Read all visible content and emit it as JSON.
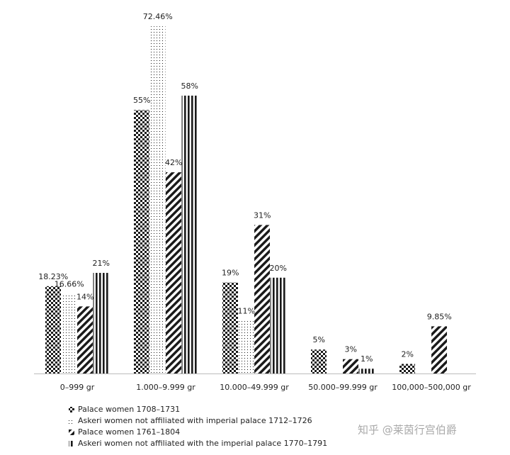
{
  "chart_data": {
    "type": "bar",
    "categories": [
      "0–999 gr",
      "1.000–9.999 gr",
      "10.000–49.999 gr",
      "50.000–99.999 gr",
      "100,000–500,000 gr"
    ],
    "series": [
      {
        "name": "Palace women  1708–1731",
        "color": "#1a1a1a",
        "pattern": "checker",
        "values": [
          18.23,
          55,
          19,
          5,
          2
        ],
        "value_labels": [
          "18.23%",
          "55%",
          "19%",
          "5%",
          "2%"
        ]
      },
      {
        "name": "Askeri women not affiliated with imperial palace  1712–1726",
        "color": "#1a1a1a",
        "pattern": "dots",
        "values": [
          16.66,
          72.46,
          11,
          null,
          null
        ],
        "value_labels": [
          "16.66%",
          "72.46%",
          "11%",
          null,
          null
        ]
      },
      {
        "name": "Palace women 1761–1804",
        "color": "#1a1a1a",
        "pattern": "diagonal",
        "values": [
          14,
          42,
          31,
          3,
          9.85
        ],
        "value_labels": [
          "14%",
          "42%",
          "31%",
          "3%",
          "9.85%"
        ]
      },
      {
        "name": "Askeri women not affiliated with the imperial palace 1770–1791",
        "color": "#1a1a1a",
        "pattern": "vertical",
        "values": [
          21,
          58,
          20,
          1,
          null
        ],
        "value_labels": [
          "21%",
          "58%",
          "20%",
          "1%",
          null
        ]
      }
    ],
    "legend": "bottom-left",
    "watermark": "知乎 @莱茵行宫伯爵"
  }
}
